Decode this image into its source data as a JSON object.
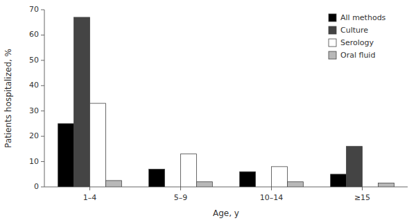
{
  "chart_data": {
    "type": "bar",
    "x_label": "Age, y",
    "y_label": "Patients hospitalized, %",
    "categories": [
      "1–4",
      "5–9",
      "10–14",
      "≥15"
    ],
    "series": [
      {
        "name": "All methods",
        "color": "#000000",
        "values": [
          25,
          7,
          6,
          5
        ]
      },
      {
        "name": "Culture",
        "color": "#444444",
        "values": [
          67,
          0,
          0,
          16
        ]
      },
      {
        "name": "Serology",
        "color": "#ffffff",
        "values": [
          33,
          13,
          8,
          0
        ]
      },
      {
        "name": "Oral fluid",
        "color": "#b8b8b8",
        "values": [
          2.5,
          2,
          2,
          1.5
        ]
      }
    ],
    "ylim": [
      0,
      70
    ],
    "yticks": [
      0,
      10,
      20,
      30,
      40,
      50,
      60,
      70
    ],
    "grid": false,
    "legend": "upper right"
  }
}
